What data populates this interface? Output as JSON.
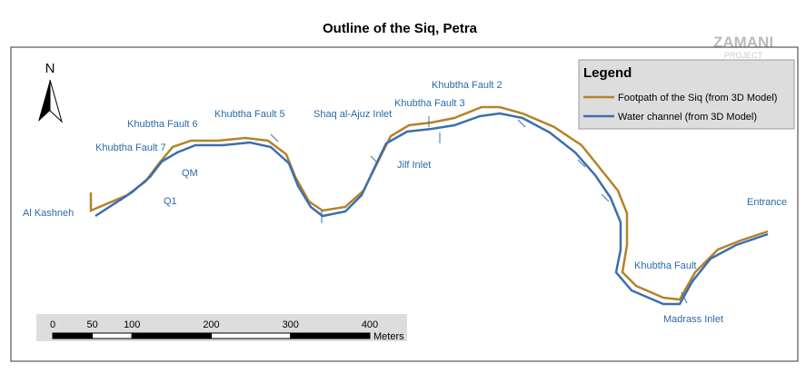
{
  "title": "Outline of the Siq, Petra",
  "logo": {
    "name": "ZAMANI",
    "sub": "PROJECT"
  },
  "north": "N",
  "legend": {
    "title": "Legend",
    "items": [
      "Footpath of the Siq (from 3D Model)",
      "Water channel (from 3D Model)"
    ]
  },
  "labels": [
    "Al Kashneh",
    "Khubtha Fault 6",
    "Khubtha Fault 7",
    "QM",
    "Q1",
    "Khubtha Fault 5",
    "Shaq al-Ajuz Inlet",
    "Khubtha Fault 3",
    "Khubtha Fault 2",
    "Jilf Inlet",
    "Entrance",
    "Khubtha Fault",
    "Madrass Inlet"
  ],
  "scale": {
    "ticks": [
      0,
      50,
      100,
      200,
      300,
      400
    ],
    "unit": "Meters"
  }
}
